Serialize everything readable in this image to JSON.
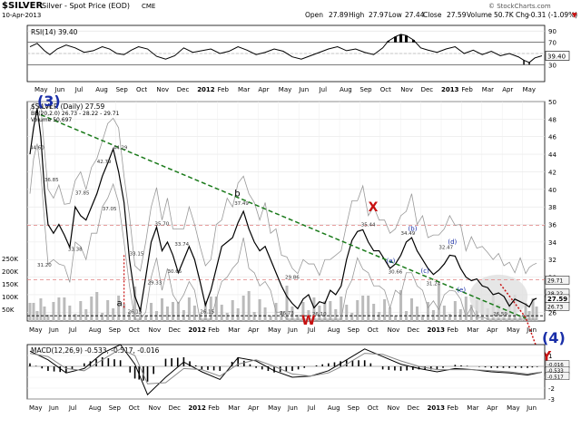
{
  "header": {
    "symbol": "$SILVER",
    "name": "Silver - Spot Price (EOD)",
    "exchange": "CME",
    "watermark": "© StockCharts.com",
    "date": "10-Apr-2013",
    "quote": {
      "open_label": "Open",
      "open": "27.89",
      "high_label": "High",
      "high": "27.97",
      "low_label": "Low",
      "low": "27.44",
      "close_label": "Close",
      "close": "27.59",
      "volume_label": "Volume",
      "volume": "50.7K",
      "chg_label": "Chg",
      "chg": "-0.31 (-1.09%)",
      "chg_arrow": "▼"
    }
  },
  "colors": {
    "price": "#000000",
    "trendline": "#1a7a1a",
    "accent": "#c81010",
    "blue": "#1a2fa8",
    "band": "#999999",
    "hline": "#e08080",
    "highlight": "#e0e0e0"
  },
  "months_top": [
    "May",
    "Jun",
    "Jul",
    "Aug",
    "Sep",
    "Oct",
    "Nov",
    "Dec",
    "2012",
    "Feb",
    "Mar",
    "Apr",
    "May",
    "Jun",
    "Jul",
    "Aug",
    "Sep",
    "Oct",
    "Nov",
    "Dec",
    "2013",
    "Feb",
    "Mar",
    "Apr",
    "May"
  ],
  "months_bottom": [
    "May",
    "Jun",
    "Jul",
    "Aug",
    "Sep",
    "Oct",
    "Nov",
    "Dec",
    "2012",
    "Feb",
    "Mar",
    "Apr",
    "May",
    "Jun",
    "Jul",
    "Aug",
    "Sep",
    "Oct",
    "Nov",
    "Dec",
    "2013",
    "Feb",
    "Mar",
    "Apr",
    "May",
    "Jun"
  ],
  "chart_data": [
    {
      "type": "line",
      "panel": "rsi",
      "title": "RSI(14) 39.40",
      "ylim": [
        0,
        100
      ],
      "yticks": [
        30,
        50,
        70,
        90
      ],
      "guides": [
        30,
        70
      ],
      "current_label": "39.40",
      "grid": true,
      "series": [
        {
          "name": "RSI(14)",
          "x": [
            0,
            8,
            16,
            22,
            30,
            40,
            50,
            60,
            70,
            80,
            88,
            96,
            104,
            112,
            120,
            130,
            140,
            150,
            160,
            170,
            180,
            190,
            200,
            210,
            220,
            230,
            240,
            250,
            260,
            270,
            280,
            290,
            300,
            310,
            320,
            330,
            340,
            350,
            360,
            370,
            380,
            390,
            396,
            404,
            410,
            416,
            424,
            432,
            440,
            450,
            460,
            470,
            480,
            490,
            500,
            510,
            520,
            530,
            540,
            546,
            552,
            558,
            566
          ],
          "y": [
            62,
            68,
            55,
            48,
            58,
            65,
            60,
            52,
            55,
            62,
            58,
            50,
            48,
            56,
            62,
            58,
            45,
            40,
            46,
            60,
            52,
            55,
            58,
            50,
            54,
            62,
            56,
            48,
            52,
            58,
            54,
            44,
            40,
            46,
            52,
            58,
            62,
            55,
            58,
            52,
            48,
            60,
            72,
            80,
            84,
            82,
            74,
            60,
            56,
            52,
            58,
            62,
            50,
            56,
            48,
            54,
            46,
            50,
            44,
            38,
            34,
            42,
            46
          ]
        }
      ]
    },
    {
      "type": "line",
      "panel": "price",
      "title": "$SILVER (Daily) 27.59",
      "legend": [
        "BB(20,2.0) 26.73 - 28.22 - 29.71",
        "Volume 50,697"
      ],
      "xlabel": "",
      "ylabel": "",
      "ylim": [
        25,
        50
      ],
      "yticks": [
        26,
        28,
        30,
        32,
        34,
        36,
        38,
        40,
        42,
        44,
        46,
        48,
        50
      ],
      "right_labels": [
        "29.71",
        "28.22",
        "27.59",
        "26.73"
      ],
      "volume_axis": [
        "250K",
        "200K",
        "150K",
        "100K",
        "50K"
      ],
      "grid": true,
      "series": [
        {
          "name": "$SILVER (Daily)",
          "x": [
            0,
            4,
            8,
            12,
            16,
            20,
            26,
            32,
            38,
            44,
            50,
            56,
            62,
            68,
            74,
            80,
            86,
            92,
            98,
            104,
            110,
            116,
            122,
            128,
            134,
            140,
            146,
            152,
            158,
            164,
            170,
            176,
            182,
            188,
            194,
            200,
            206,
            212,
            218,
            224,
            230,
            236,
            242,
            248,
            254,
            260,
            266,
            272,
            278,
            284,
            290,
            296,
            302,
            308,
            314,
            320,
            326,
            332,
            338,
            344,
            350,
            356,
            362,
            368,
            374,
            380,
            386,
            392,
            398,
            404,
            410,
            416,
            422,
            428,
            434,
            440,
            446,
            452,
            458,
            464,
            470,
            476,
            482,
            488,
            494,
            500,
            506,
            512,
            518,
            524,
            530,
            536,
            542,
            548,
            552,
            556,
            560
          ],
          "y": [
            44.0,
            47.0,
            49.2,
            46.0,
            40.0,
            36.0,
            35.0,
            36.0,
            34.8,
            33.4,
            38.0,
            37.0,
            36.5,
            38.0,
            39.5,
            41.5,
            43.0,
            44.6,
            42.0,
            38.5,
            32.0,
            27.8,
            26.2,
            30.0,
            34.0,
            35.7,
            33.0,
            34.0,
            32.5,
            30.5,
            32.0,
            33.5,
            32.0,
            29.5,
            26.8,
            28.5,
            31.0,
            33.5,
            34.0,
            34.5,
            36.2,
            37.5,
            35.5,
            34.0,
            33.0,
            33.5,
            32.0,
            30.5,
            29.0,
            27.8,
            27.0,
            26.4,
            27.5,
            28.0,
            26.5,
            27.2,
            27.0,
            28.5,
            28.0,
            29.0,
            32.0,
            34.2,
            35.2,
            35.4,
            34.0,
            33.0,
            33.0,
            32.0,
            31.0,
            31.5,
            32.5,
            34.0,
            34.5,
            33.0,
            32.0,
            31.0,
            30.3,
            30.8,
            31.5,
            32.5,
            32.4,
            31.0,
            30.0,
            29.6,
            29.8,
            29.0,
            28.8,
            28.0,
            28.2,
            27.8,
            26.7,
            27.5,
            27.2,
            26.9,
            26.6,
            27.4,
            27.59
          ]
        }
      ],
      "annotations": [
        {
          "text": "(3)",
          "x": 8,
          "y": 49.5
        },
        {
          "text": "b",
          "x": 226,
          "y": 39.2
        },
        {
          "text": "X",
          "x": 374,
          "y": 37.5
        },
        {
          "text": "W",
          "x": 300,
          "y": 24.6
        },
        {
          "text": "(b)",
          "x": 418,
          "y": 35.3
        },
        {
          "text": "(d)",
          "x": 462,
          "y": 33.8
        },
        {
          "text": "(a)",
          "x": 394,
          "y": 31.6
        },
        {
          "text": "(c)",
          "x": 432,
          "y": 30.5
        },
        {
          "text": "(e)",
          "x": 472,
          "y": 28.3
        },
        {
          "text": "a",
          "x": 96,
          "y": 26.7
        },
        {
          "text": "(4)",
          "x": 566,
          "y": 22.5
        },
        {
          "text": "Y",
          "x": 566,
          "y": 20.5
        }
      ],
      "price_labels": [
        {
          "text": "44.60",
          "x": 0,
          "y": 44.6
        },
        {
          "text": "48.46",
          "x": 8,
          "y": 49.2
        },
        {
          "text": "36.85",
          "x": 16,
          "y": 40.9
        },
        {
          "text": "31.20",
          "x": 8,
          "y": 31.2
        },
        {
          "text": "33.38",
          "x": 42,
          "y": 33.0
        },
        {
          "text": "37.85",
          "x": 50,
          "y": 39.4
        },
        {
          "text": "42.79",
          "x": 74,
          "y": 43.0
        },
        {
          "text": "44.29",
          "x": 92,
          "y": 44.6
        },
        {
          "text": "37.05",
          "x": 80,
          "y": 37.6
        },
        {
          "text": "33.15",
          "x": 110,
          "y": 32.5
        },
        {
          "text": "35.70",
          "x": 138,
          "y": 35.9
        },
        {
          "text": "33.74",
          "x": 160,
          "y": 33.6
        },
        {
          "text": "29.33",
          "x": 130,
          "y": 29.2
        },
        {
          "text": "30.65",
          "x": 152,
          "y": 30.5
        },
        {
          "text": "26.15",
          "x": 108,
          "y": 25.9
        },
        {
          "text": "26.15",
          "x": 188,
          "y": 25.9
        },
        {
          "text": "37.49",
          "x": 226,
          "y": 38.2
        },
        {
          "text": "29.86",
          "x": 282,
          "y": 29.8
        },
        {
          "text": "26.73",
          "x": 276,
          "y": 25.7
        },
        {
          "text": "26.10",
          "x": 312,
          "y": 25.6
        },
        {
          "text": "35.44",
          "x": 366,
          "y": 35.8
        },
        {
          "text": "34.49",
          "x": 410,
          "y": 34.8
        },
        {
          "text": "30.66",
          "x": 396,
          "y": 30.4
        },
        {
          "text": "32.47",
          "x": 452,
          "y": 33.2
        },
        {
          "text": "31.24",
          "x": 438,
          "y": 29.1
        },
        {
          "text": "26.59",
          "x": 512,
          "y": 25.6
        }
      ]
    },
    {
      "type": "line",
      "panel": "macd",
      "title": "MACD(12,26,9) -0.533, -0.517, -0.016",
      "ylim": [
        -3,
        2
      ],
      "yticks": [
        -3,
        -2,
        -1,
        0,
        1
      ],
      "right_labels": [
        "-0.016",
        "-0.533",
        "-0.517"
      ],
      "grid": true,
      "series": [
        {
          "name": "MACD(12,26,9)",
          "x": [
            0,
            20,
            40,
            60,
            80,
            100,
            116,
            130,
            150,
            170,
            190,
            210,
            230,
            250,
            270,
            290,
            310,
            330,
            350,
            370,
            390,
            410,
            430,
            450,
            470,
            490,
            510,
            530,
            550,
            566
          ],
          "y": [
            1.4,
            0.6,
            -0.6,
            -0.2,
            1.2,
            2.0,
            0.2,
            -2.6,
            -1.0,
            0.4,
            -0.5,
            -1.2,
            0.8,
            0.5,
            -0.4,
            -1.0,
            -0.9,
            -0.4,
            0.6,
            1.6,
            0.9,
            0.2,
            -0.2,
            -0.5,
            -0.2,
            -0.3,
            -0.5,
            -0.6,
            -0.8,
            -0.53
          ]
        },
        {
          "name": "Signal",
          "x": [
            0,
            20,
            40,
            60,
            80,
            100,
            116,
            130,
            150,
            170,
            190,
            210,
            230,
            250,
            270,
            290,
            310,
            330,
            350,
            370,
            390,
            410,
            430,
            450,
            470,
            490,
            510,
            530,
            550,
            566
          ],
          "y": [
            1.2,
            0.9,
            -0.2,
            -0.4,
            0.6,
            1.6,
            1.0,
            -1.6,
            -1.5,
            -0.2,
            -0.3,
            -0.9,
            0.2,
            0.6,
            0.0,
            -0.7,
            -0.9,
            -0.6,
            0.2,
            1.2,
            1.1,
            0.5,
            0.0,
            -0.3,
            -0.3,
            -0.3,
            -0.4,
            -0.5,
            -0.7,
            -0.52
          ]
        }
      ]
    }
  ]
}
